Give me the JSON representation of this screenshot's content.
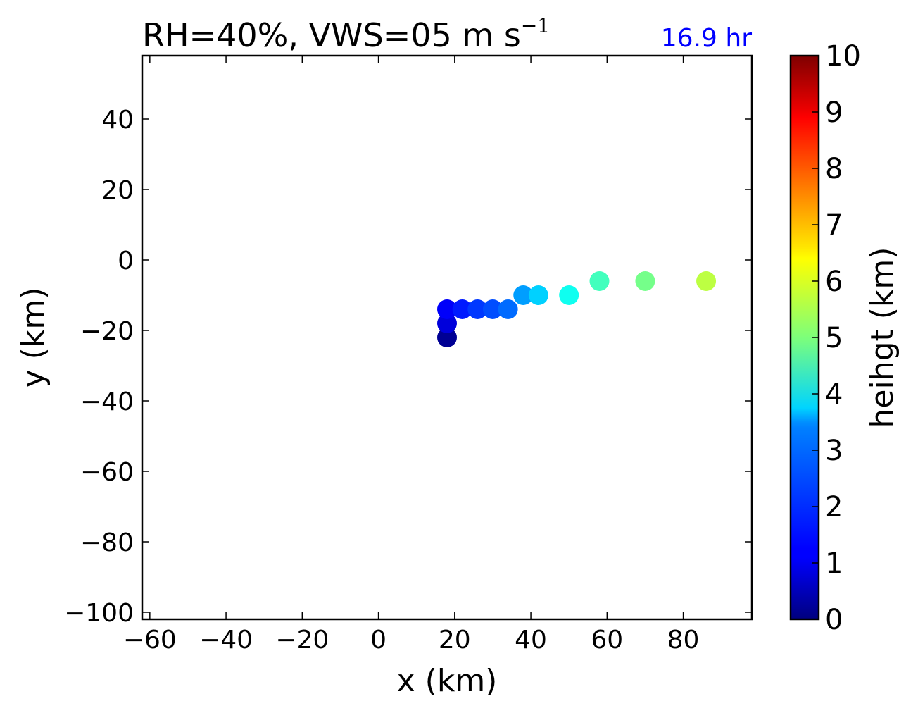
{
  "chart_data": {
    "type": "scatter",
    "title": "RH=40%, VWS=05 m s",
    "title_superscript": "−1",
    "annotation": "16.9 hr",
    "annotation_color": "#0000ff",
    "xlabel": "x (km)",
    "ylabel": "y (km)",
    "xlim": [
      -62,
      98
    ],
    "ylim": [
      -102,
      58
    ],
    "x_ticks": [
      -60,
      -40,
      -20,
      0,
      20,
      40,
      60,
      80
    ],
    "x_tick_labels": [
      "−60",
      "−40",
      "−20",
      "0",
      "20",
      "40",
      "60",
      "80"
    ],
    "y_ticks": [
      40,
      20,
      0,
      -20,
      -40,
      -60,
      -80,
      -100
    ],
    "y_tick_labels": [
      "40",
      "20",
      "0",
      "−20",
      "−40",
      "−60",
      "−80",
      "−100"
    ],
    "grid": false,
    "colormap": "jet",
    "colorbar": {
      "label": "heihgt (km)",
      "range": [
        0,
        10
      ],
      "ticks": [
        "0",
        "1",
        "2",
        "3",
        "4",
        "5",
        "6",
        "7",
        "8",
        "9",
        "10"
      ]
    },
    "points": [
      {
        "x": 18,
        "y": -22,
        "height": 0.2
      },
      {
        "x": 18,
        "y": -18,
        "height": 0.9
      },
      {
        "x": 18,
        "y": -14,
        "height": 1.2
      },
      {
        "x": 22,
        "y": -14,
        "height": 1.5
      },
      {
        "x": 26,
        "y": -14,
        "height": 1.8
      },
      {
        "x": 30,
        "y": -14,
        "height": 2.0
      },
      {
        "x": 34,
        "y": -14,
        "height": 2.3
      },
      {
        "x": 38,
        "y": -10,
        "height": 2.8
      },
      {
        "x": 42,
        "y": -10,
        "height": 3.3
      },
      {
        "x": 50,
        "y": -10,
        "height": 3.9
      },
      {
        "x": 58,
        "y": -6,
        "height": 4.4
      },
      {
        "x": 70,
        "y": -6,
        "height": 4.9
      },
      {
        "x": 86,
        "y": -6,
        "height": 5.6
      }
    ]
  }
}
